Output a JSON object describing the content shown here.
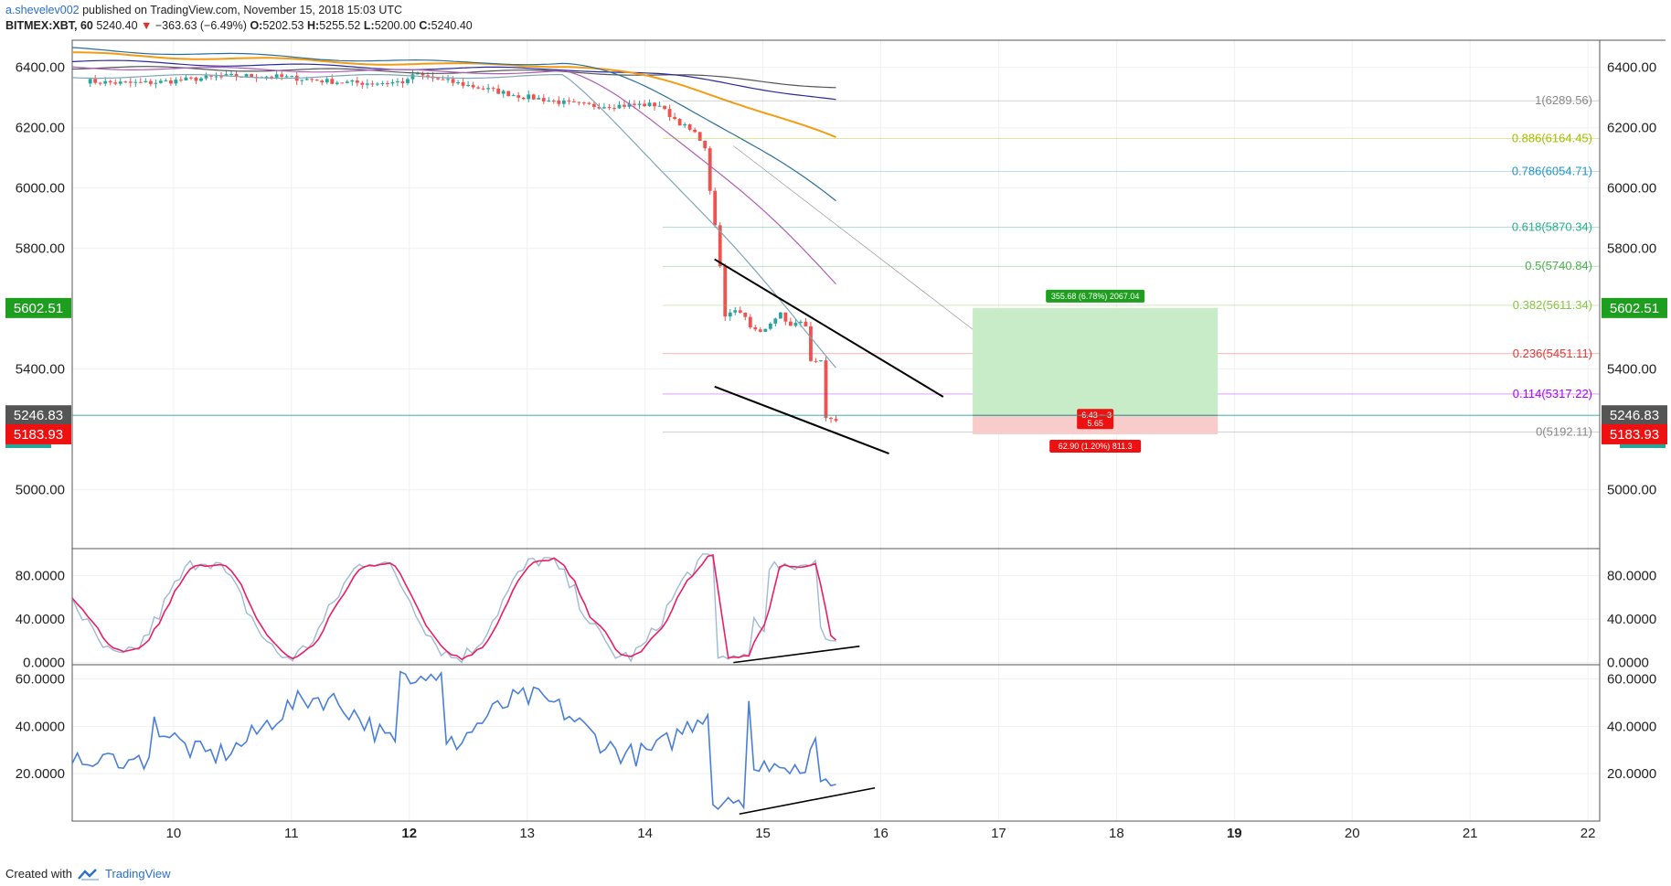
{
  "header": {
    "user": "a.shevelev002",
    "published": "published on TradingView.com, November 15, 2018 15:03 UTC",
    "symbol": "BITMEX:XBT, 60",
    "last": "5240.40",
    "change": "−363.63 (−6.49%)",
    "o_label": "O:",
    "o": "5202.53",
    "h_label": "H:",
    "h": "5255.52",
    "l_label": "L:",
    "l": "5200.00",
    "c_label": "C:",
    "c": "5240.40"
  },
  "footer": {
    "created": "Created with",
    "brand": "TradingView"
  },
  "colors": {
    "up": "#26a69a",
    "down": "#ef5350",
    "green_box": "#c8ebc8",
    "red_box": "#f9cccc"
  },
  "chart_data": [
    {
      "type": "candlestick",
      "panel": "price",
      "x_ticks": [
        "10",
        "11",
        "12",
        "13",
        "14",
        "15",
        "16",
        "17",
        "18",
        "19",
        "20",
        "21",
        "22"
      ],
      "x_range": [
        9.14,
        22.1
      ],
      "y_ticks": [
        "5000.00",
        "5400.00",
        "5800.00",
        "6000.00",
        "6200.00",
        "6400.00"
      ],
      "ylim": [
        4805,
        6490
      ],
      "price_labels": {
        "target": "5602.51",
        "current": "5246.83",
        "stop": "5183.93"
      },
      "fib_levels": [
        {
          "label": "1(6289.56)",
          "value": 6289.56,
          "color": "#888888"
        },
        {
          "label": "0.886(6164.45)",
          "value": 6164.45,
          "color": "#a0c000"
        },
        {
          "label": "0.786(6054.71)",
          "value": 6054.71,
          "color": "#2196c8"
        },
        {
          "label": "0.618(5870.34)",
          "value": 5870.34,
          "color": "#26b089"
        },
        {
          "label": "0.5(5740.84)",
          "value": 5740.84,
          "color": "#4caf50"
        },
        {
          "label": "0.382(5611.34)",
          "value": 5611.34,
          "color": "#8bc34a"
        },
        {
          "label": "0.236(5451.11)",
          "value": 5451.11,
          "color": "#e53935"
        },
        {
          "label": "0.114(5317.22)",
          "value": 5317.22,
          "color": "#aa00ff"
        },
        {
          "label": "0(5192.11)",
          "value": 5192.11,
          "color": "#888888"
        }
      ],
      "position": {
        "x_start": 16.78,
        "x_end": 18.86,
        "entry": 5246.83,
        "target": 5602.51,
        "stop": 5183.93,
        "profit_text": "355.68 (6.78%) 2067.04",
        "loss_text": "62.90 (1.20%) 811.3",
        "mid_text_1": "-6.43 ~ 3",
        "mid_text_2": "5.65"
      },
      "trendlines": [
        {
          "x": [
            14.59,
            16.53
          ],
          "y": [
            5764,
            5308
          ]
        },
        {
          "x": [
            14.59,
            16.07
          ],
          "y": [
            5342,
            5120
          ]
        }
      ],
      "guide_line": {
        "x": [
          14.75,
          17.78
        ],
        "y": [
          6140,
          5232
        ]
      }
    },
    {
      "type": "line",
      "panel": "stochastic",
      "y_ticks": [
        "0.0000",
        "40.0000",
        "80.0000"
      ],
      "ylim": [
        -2,
        105
      ],
      "series": [
        {
          "color": "#9fb9d8"
        },
        {
          "color": "#e91e63"
        }
      ],
      "trendlines": [
        {
          "x": [
            14.75,
            15.82
          ],
          "y": [
            0,
            15
          ]
        }
      ]
    },
    {
      "type": "line",
      "panel": "rsi",
      "y_ticks": [
        "20.0000",
        "40.0000",
        "60.0000"
      ],
      "ylim": [
        0,
        66
      ],
      "series": [
        {
          "color": "#4a7fd8"
        }
      ],
      "trendlines": [
        {
          "x": [
            14.8,
            15.95
          ],
          "y": [
            3,
            14
          ]
        }
      ]
    }
  ]
}
